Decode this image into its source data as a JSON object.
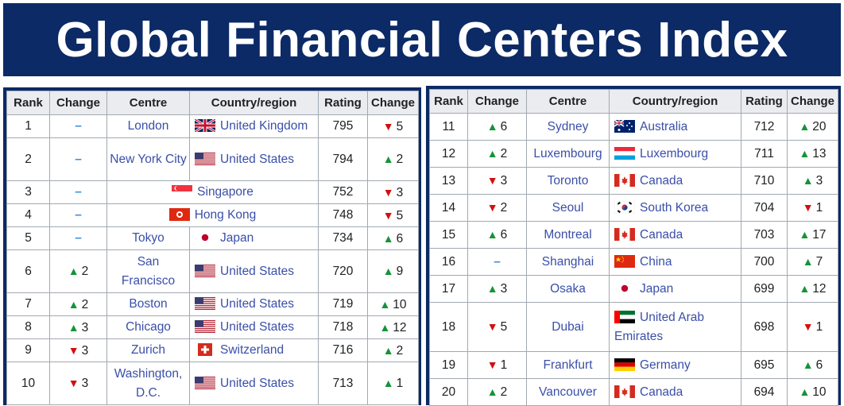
{
  "title": "Global Financial Centers Index",
  "headers": {
    "rank": "Rank",
    "change": "Change",
    "centre": "Centre",
    "country": "Country/region",
    "rating": "Rating",
    "rating_change": "Change"
  },
  "colors": {
    "banner": "#0b2a66",
    "up": "#14933a",
    "down": "#d20f0f",
    "no_change": "#3a8ee0",
    "link": "#3a4fa8"
  },
  "left_rows": [
    {
      "rank": "1",
      "change_dir": "none",
      "change": "",
      "centre": "London",
      "country": "United Kingdom",
      "flag": "uk",
      "rating": "795",
      "rc_dir": "down",
      "rc": "5"
    },
    {
      "rank": "2",
      "change_dir": "none",
      "change": "",
      "centre": "New York City",
      "country": "United States",
      "flag": "us",
      "rating": "794",
      "rc_dir": "up",
      "rc": "2"
    },
    {
      "rank": "3",
      "change_dir": "none",
      "change": "",
      "centre": "",
      "country": "Singapore",
      "flag": "sg",
      "rating": "752",
      "rc_dir": "down",
      "rc": "3",
      "merged": true
    },
    {
      "rank": "4",
      "change_dir": "none",
      "change": "",
      "centre": "",
      "country": "Hong Kong",
      "flag": "hk",
      "rating": "748",
      "rc_dir": "down",
      "rc": "5",
      "merged": true
    },
    {
      "rank": "5",
      "change_dir": "none",
      "change": "",
      "centre": "Tokyo",
      "country": "Japan",
      "flag": "jp",
      "rating": "734",
      "rc_dir": "up",
      "rc": "6"
    },
    {
      "rank": "6",
      "change_dir": "up",
      "change": "2",
      "centre": "San Francisco",
      "country": "United States",
      "flag": "us",
      "rating": "720",
      "rc_dir": "up",
      "rc": "9"
    },
    {
      "rank": "7",
      "change_dir": "up",
      "change": "2",
      "centre": "Boston",
      "country": "United States",
      "flag": "us",
      "rating": "719",
      "rc_dir": "up",
      "rc": "10"
    },
    {
      "rank": "8",
      "change_dir": "up",
      "change": "3",
      "centre": "Chicago",
      "country": "United States",
      "flag": "us",
      "rating": "718",
      "rc_dir": "up",
      "rc": "12"
    },
    {
      "rank": "9",
      "change_dir": "down",
      "change": "3",
      "centre": "Zurich",
      "country": "Switzerland",
      "flag": "ch",
      "rating": "716",
      "rc_dir": "up",
      "rc": "2"
    },
    {
      "rank": "10",
      "change_dir": "down",
      "change": "3",
      "centre": "Washington, D.C.",
      "country": "United States",
      "flag": "us",
      "rating": "713",
      "rc_dir": "up",
      "rc": "1"
    }
  ],
  "right_rows": [
    {
      "rank": "11",
      "change_dir": "up",
      "change": "6",
      "centre": "Sydney",
      "country": "Australia",
      "flag": "au",
      "rating": "712",
      "rc_dir": "up",
      "rc": "20"
    },
    {
      "rank": "12",
      "change_dir": "up",
      "change": "2",
      "centre": "Luxembourg",
      "country": "Luxembourg",
      "flag": "lu",
      "rating": "711",
      "rc_dir": "up",
      "rc": "13"
    },
    {
      "rank": "13",
      "change_dir": "down",
      "change": "3",
      "centre": "Toronto",
      "country": "Canada",
      "flag": "ca",
      "rating": "710",
      "rc_dir": "up",
      "rc": "3"
    },
    {
      "rank": "14",
      "change_dir": "down",
      "change": "2",
      "centre": "Seoul",
      "country": "South Korea",
      "flag": "kr",
      "rating": "704",
      "rc_dir": "down",
      "rc": "1"
    },
    {
      "rank": "15",
      "change_dir": "up",
      "change": "6",
      "centre": "Montreal",
      "country": "Canada",
      "flag": "ca",
      "rating": "703",
      "rc_dir": "up",
      "rc": "17"
    },
    {
      "rank": "16",
      "change_dir": "none",
      "change": "",
      "centre": "Shanghai",
      "country": "China",
      "flag": "cn",
      "rating": "700",
      "rc_dir": "up",
      "rc": "7"
    },
    {
      "rank": "17",
      "change_dir": "up",
      "change": "3",
      "centre": "Osaka",
      "country": "Japan",
      "flag": "jp",
      "rating": "699",
      "rc_dir": "up",
      "rc": "12"
    },
    {
      "rank": "18",
      "change_dir": "down",
      "change": "5",
      "centre": "Dubai",
      "country": "United Arab Emirates",
      "flag": "ae",
      "rating": "698",
      "rc_dir": "down",
      "rc": "1"
    },
    {
      "rank": "19",
      "change_dir": "down",
      "change": "1",
      "centre": "Frankfurt",
      "country": "Germany",
      "flag": "de",
      "rating": "695",
      "rc_dir": "up",
      "rc": "6"
    },
    {
      "rank": "20",
      "change_dir": "up",
      "change": "2",
      "centre": "Vancouver",
      "country": "Canada",
      "flag": "ca",
      "rating": "694",
      "rc_dir": "up",
      "rc": "10"
    }
  ]
}
